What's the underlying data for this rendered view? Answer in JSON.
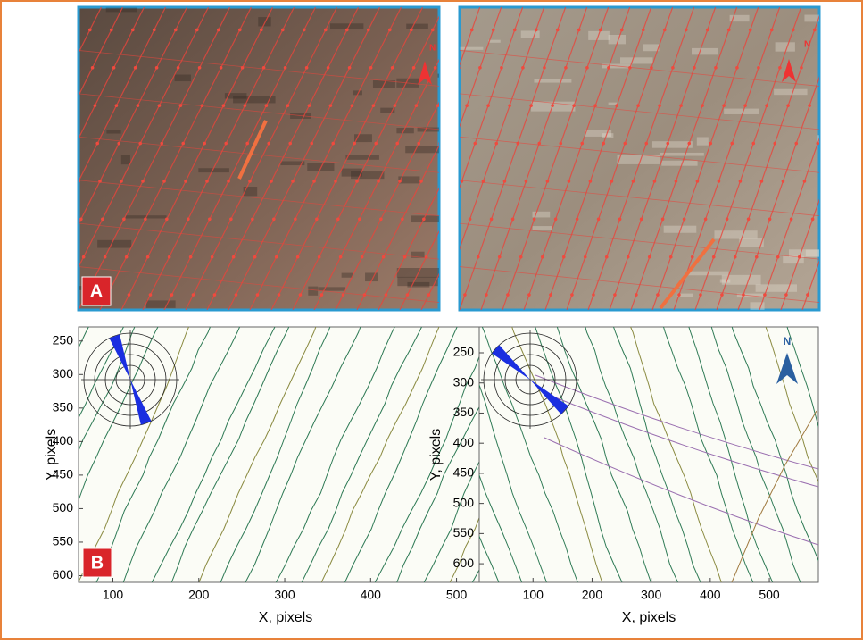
{
  "photos": [
    {
      "label": "A",
      "north": "N"
    },
    {
      "north": "N"
    }
  ],
  "plots": [
    {
      "label": "B",
      "xlabel": "X, pixels",
      "ylabel": "Y, pixels",
      "xlim": [
        60,
        542
      ],
      "ylim": [
        229,
        610
      ],
      "xticks": [
        100,
        200,
        300,
        400,
        500
      ],
      "yticks": [
        250,
        300,
        350,
        400,
        450,
        500,
        550,
        600
      ]
    },
    {
      "north": "N",
      "xlabel": "X, pixels",
      "ylabel": "Y, pixels",
      "xlim": [
        9,
        583
      ],
      "ylim": [
        207,
        631
      ],
      "xticks": [
        100,
        200,
        300,
        400,
        500
      ],
      "yticks": [
        250,
        300,
        350,
        400,
        450,
        500,
        550,
        600
      ]
    }
  ]
}
